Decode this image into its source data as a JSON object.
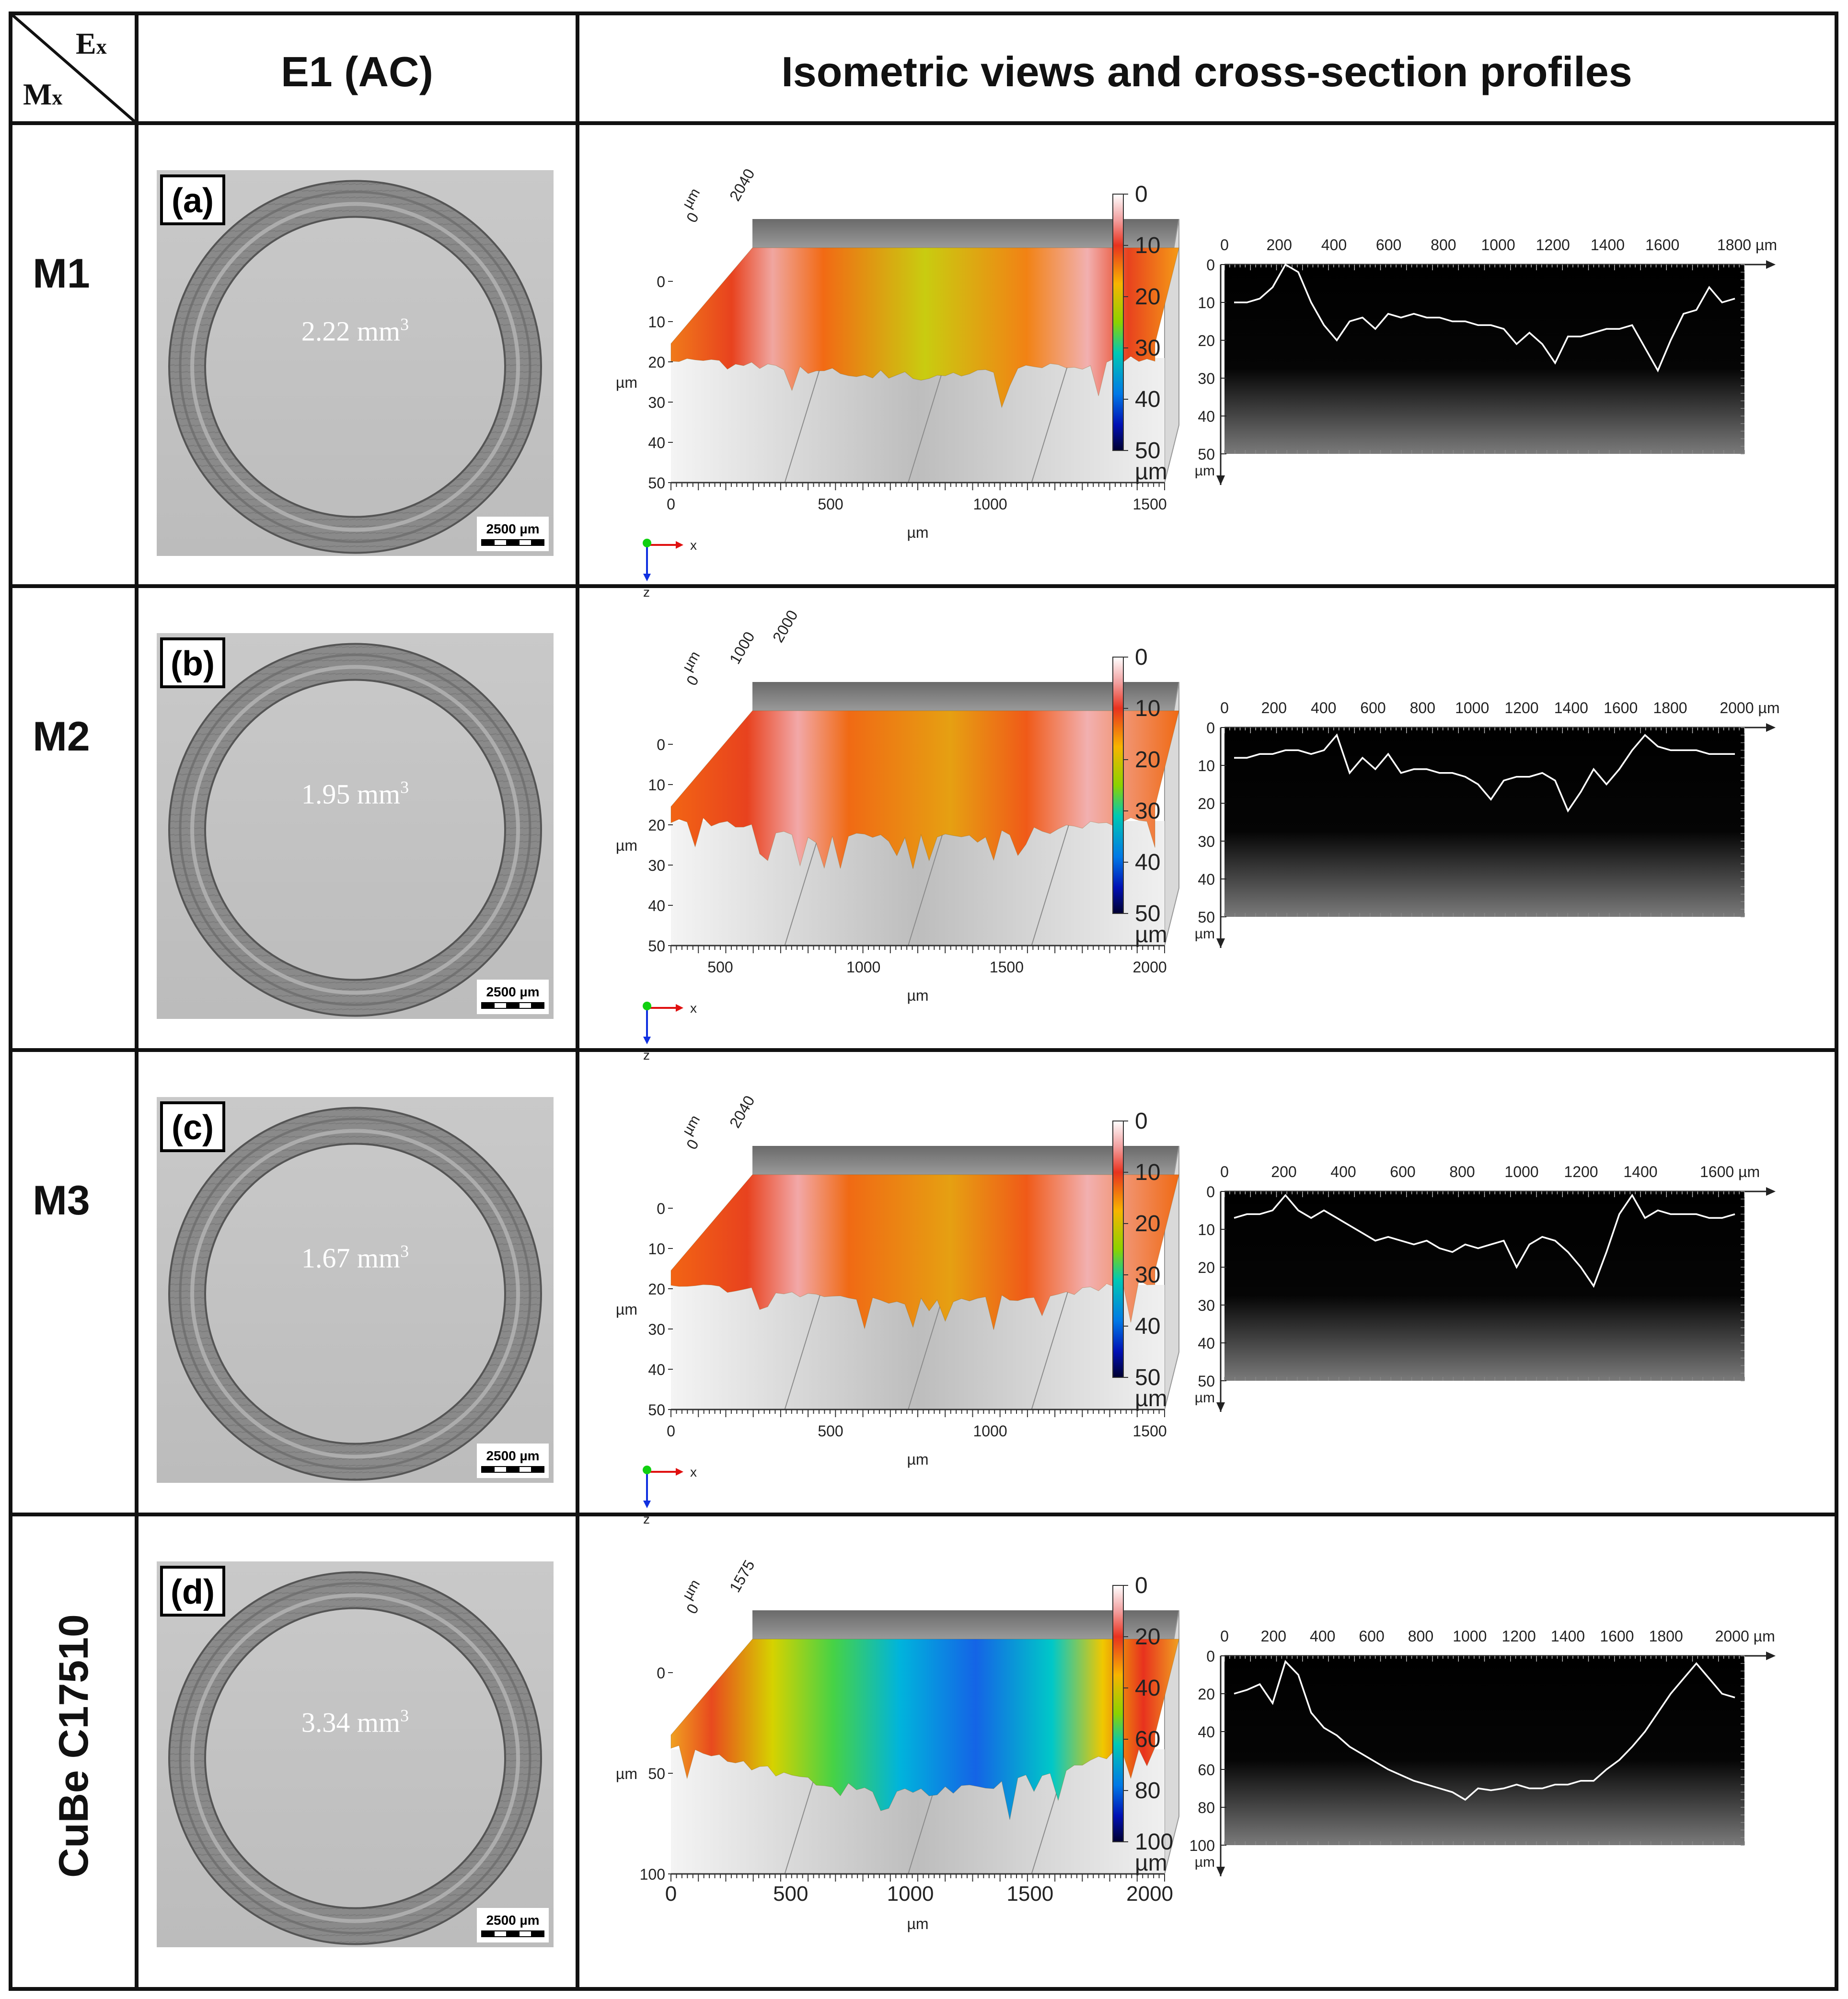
{
  "header": {
    "corner_top": "E",
    "corner_top_sub": "x",
    "corner_bottom": "M",
    "corner_bottom_sub": "x",
    "col1": "E1 (AC)",
    "col2": "Isometric views and cross-section profiles"
  },
  "rows": [
    {
      "label": "M1",
      "panel": "(a)",
      "volume": "2.22 mm",
      "volume_sup": "3",
      "scalebar": "2500 µm",
      "iso": {
        "y_label": "µm",
        "y_ticks": [
          "0",
          "10",
          "20",
          "30",
          "40",
          "50"
        ],
        "x_label": "µm",
        "x_ticks": [
          "0",
          "500",
          "1000",
          "1500"
        ],
        "depth_ticks": [
          "0",
          "2040"
        ],
        "depth_unit": "µm",
        "axes": [
          "x",
          "z"
        ],
        "colorbar_ticks": [
          "0",
          "10",
          "20",
          "30",
          "40",
          "50"
        ],
        "colorbar_unit": "µm"
      },
      "profile": {
        "x_ticks": [
          "0",
          "200",
          "400",
          "600",
          "800",
          "1000",
          "1200",
          "1400",
          "1600",
          "1800 µm"
        ],
        "y_ticks": [
          "0",
          "10",
          "20",
          "30",
          "40",
          "50"
        ],
        "y_unit": "µm",
        "x_max": 1900,
        "y_max": 50,
        "depths": [
          10,
          10,
          9,
          6,
          0,
          2,
          10,
          16,
          20,
          15,
          14,
          17,
          13,
          14,
          13,
          14,
          14,
          15,
          15,
          16,
          16,
          17,
          21,
          18,
          21,
          26,
          19,
          19,
          18,
          17,
          17,
          16,
          22,
          28,
          20,
          13,
          12,
          6,
          10,
          9
        ]
      }
    },
    {
      "label": "M2",
      "panel": "(b)",
      "volume": "1.95 mm",
      "volume_sup": "3",
      "scalebar": "2500 µm",
      "iso": {
        "y_label": "µm",
        "y_ticks": [
          "0",
          "10",
          "20",
          "30",
          "40",
          "50"
        ],
        "x_label": "µm",
        "x_ticks": [
          "500",
          "1000",
          "1500",
          "2000"
        ],
        "depth_ticks": [
          "0",
          "1000",
          "2000"
        ],
        "depth_unit": "µm",
        "axes": [
          "x",
          "z"
        ],
        "colorbar_ticks": [
          "0",
          "10",
          "20",
          "30",
          "40",
          "50"
        ],
        "colorbar_unit": "µm"
      },
      "profile": {
        "x_ticks": [
          "0",
          "200",
          "400",
          "600",
          "800",
          "1000",
          "1200",
          "1400",
          "1600",
          "1800",
          "2000 µm"
        ],
        "y_ticks": [
          "0",
          "10",
          "20",
          "30",
          "40",
          "50"
        ],
        "y_unit": "µm",
        "x_max": 2100,
        "y_max": 50,
        "depths": [
          8,
          8,
          7,
          7,
          6,
          6,
          7,
          6,
          2,
          12,
          8,
          11,
          7,
          12,
          11,
          11,
          12,
          12,
          13,
          15,
          19,
          14,
          13,
          13,
          12,
          14,
          22,
          17,
          11,
          15,
          11,
          6,
          2,
          5,
          6,
          6,
          6,
          7,
          7,
          7
        ]
      }
    },
    {
      "label": "M3",
      "panel": "(c)",
      "volume": "1.67 mm",
      "volume_sup": "3",
      "scalebar": "2500 µm",
      "iso": {
        "y_label": "µm",
        "y_ticks": [
          "0",
          "10",
          "20",
          "30",
          "40",
          "50"
        ],
        "x_label": "µm",
        "x_ticks": [
          "0",
          "500",
          "1000",
          "1500"
        ],
        "depth_ticks": [
          "0",
          "2040"
        ],
        "depth_unit": "µm",
        "axes": [
          "x",
          "z"
        ],
        "colorbar_ticks": [
          "0",
          "10",
          "20",
          "30",
          "40",
          "50"
        ],
        "colorbar_unit": "µm"
      },
      "profile": {
        "x_ticks": [
          "0",
          "200",
          "400",
          "600",
          "800",
          "1000",
          "1200",
          "1400",
          "1600 µm"
        ],
        "y_ticks": [
          "0",
          "10",
          "20",
          "30",
          "40",
          "50"
        ],
        "y_unit": "µm",
        "x_max": 1750,
        "y_max": 50,
        "depths": [
          7,
          6,
          6,
          5,
          1,
          5,
          7,
          5,
          7,
          9,
          11,
          13,
          12,
          13,
          14,
          13,
          15,
          16,
          14,
          15,
          14,
          13,
          20,
          14,
          12,
          13,
          16,
          20,
          25,
          16,
          6,
          1,
          7,
          5,
          6,
          6,
          6,
          7,
          7,
          6
        ]
      }
    },
    {
      "label": "CuBe C17510",
      "panel": "(d)",
      "volume": "3.34 mm",
      "volume_sup": "3",
      "scalebar": "2500 µm",
      "iso": {
        "y_label": "µm",
        "y_ticks": [
          "0",
          "50",
          "100"
        ],
        "x_label": "µm",
        "x_ticks": [
          "0",
          "500",
          "1000",
          "1500",
          "2000"
        ],
        "depth_ticks": [
          "0",
          "1575"
        ],
        "depth_unit": "µm",
        "axes": [],
        "colorbar_ticks": [
          "0",
          "20",
          "40",
          "60",
          "80",
          "100"
        ],
        "colorbar_unit": "µm"
      },
      "profile": {
        "x_ticks": [
          "0",
          "200",
          "400",
          "600",
          "800",
          "1000",
          "1200",
          "1400",
          "1600",
          "1800",
          "2000 µm"
        ],
        "y_ticks": [
          "0",
          "20",
          "40",
          "60",
          "80",
          "100"
        ],
        "y_unit": "µm",
        "x_max": 2120,
        "y_max": 100,
        "depths": [
          20,
          18,
          15,
          25,
          3,
          10,
          30,
          38,
          42,
          48,
          52,
          56,
          60,
          63,
          66,
          68,
          70,
          72,
          76,
          70,
          71,
          70,
          68,
          70,
          70,
          68,
          68,
          66,
          66,
          60,
          55,
          48,
          40,
          30,
          20,
          12,
          4,
          12,
          20,
          22
        ]
      }
    }
  ]
}
